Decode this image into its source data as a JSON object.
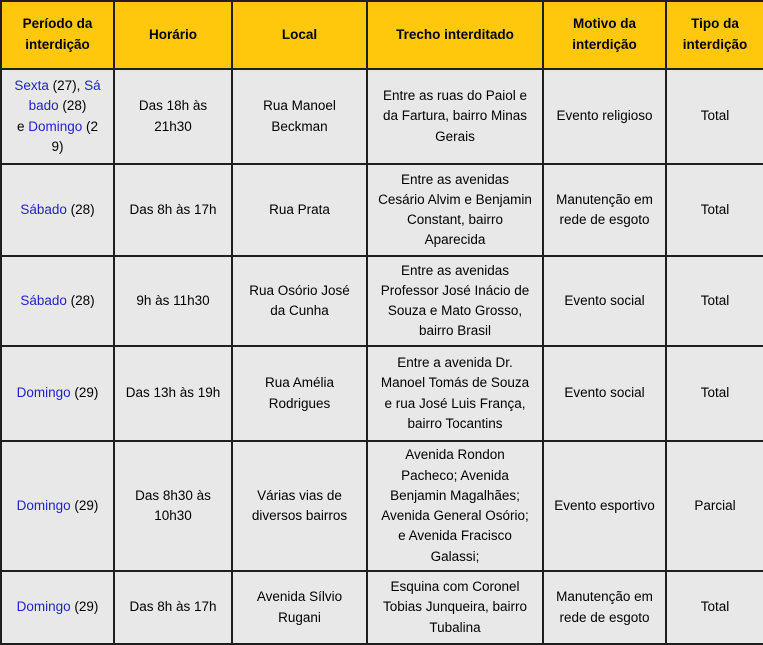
{
  "colors": {
    "header_bg": "#FFC80C",
    "cell_bg": "#E8E8E8",
    "border": "#1F1F1F",
    "link": "#2122C8",
    "text": "#000000",
    "page_bg": "#FFFFFF"
  },
  "table": {
    "headers": [
      "Período da interdição",
      "Horário",
      "Local",
      "Trecho interditado",
      "Motivo da interdição",
      "Tipo da interdição"
    ],
    "rows": [
      {
        "period": [
          {
            "text": "Sexta",
            "link": true
          },
          {
            "text": " (27), ",
            "link": false
          },
          {
            "text": "Sábado",
            "link": true
          },
          {
            "text": " (28)\ne ",
            "link": false
          },
          {
            "text": "Domingo",
            "link": true
          },
          {
            "text": " (29)",
            "link": false
          }
        ],
        "horario": "Das 18h às 21h30",
        "local": "Rua Manoel Beckman",
        "trecho": "Entre as ruas do Paiol e da Fartura, bairro Minas Gerais",
        "motivo": "Evento religioso",
        "tipo": "Total"
      },
      {
        "period": [
          {
            "text": "Sábado",
            "link": true
          },
          {
            "text": " (28)",
            "link": false
          }
        ],
        "horario": "Das 8h às 17h",
        "local": "Rua Prata",
        "trecho": "Entre as avenidas Cesário Alvim e Benjamin Constant, bairro Aparecida",
        "motivo": "Manutenção em rede de esgoto",
        "tipo": "Total"
      },
      {
        "period": [
          {
            "text": "Sábado",
            "link": true
          },
          {
            "text": " (28)",
            "link": false
          }
        ],
        "horario": "9h às 11h30",
        "local": "Rua Osório José da Cunha",
        "trecho": "Entre as avenidas Professor José Inácio de Souza e Mato Grosso, bairro Brasil",
        "motivo": "Evento social",
        "tipo": "Total"
      },
      {
        "period": [
          {
            "text": "Domingo",
            "link": true
          },
          {
            "text": " (29)",
            "link": false
          }
        ],
        "horario": "Das 13h às 19h",
        "local": "Rua Amélia Rodrigues",
        "trecho": "Entre a avenida Dr. Manoel Tomás de Souza e rua José Luis França, bairro Tocantins",
        "motivo": "Evento social",
        "tipo": "Total"
      },
      {
        "period": [
          {
            "text": "Domingo",
            "link": true
          },
          {
            "text": " (29)",
            "link": false
          }
        ],
        "horario": "Das 8h30 às 10h30",
        "local": "Várias vias de diversos bairros",
        "trecho": "Avenida Rondon Pacheco; Avenida Benjamin Magalhães; Avenida General Osório; e Avenida Fracisco Galassi;",
        "motivo": "Evento esportivo",
        "tipo": "Parcial"
      },
      {
        "period": [
          {
            "text": "Domingo",
            "link": true
          },
          {
            "text": " (29)",
            "link": false
          }
        ],
        "horario": "Das 8h às 17h",
        "local": "Avenida Sílvio Rugani",
        "trecho": "Esquina com Coronel Tobias Junqueira, bairro Tubalina",
        "motivo": "Manutenção em rede de esgoto",
        "tipo": "Total"
      }
    ]
  }
}
